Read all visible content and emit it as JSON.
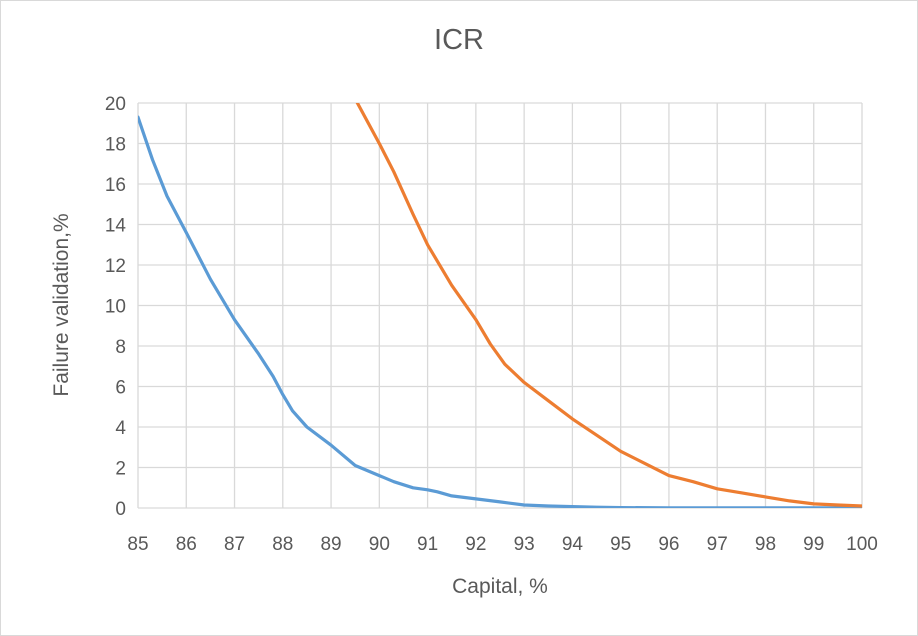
{
  "chart_data": {
    "type": "line",
    "title": "ICR",
    "xlabel": "Capital, %",
    "ylabel": "Failure validation,%",
    "xlim": [
      85,
      100
    ],
    "ylim": [
      0,
      20
    ],
    "xticks": [
      85,
      86,
      87,
      88,
      89,
      90,
      91,
      92,
      93,
      94,
      95,
      96,
      97,
      98,
      99,
      100
    ],
    "yticks": [
      0,
      2,
      4,
      6,
      8,
      10,
      12,
      14,
      16,
      18,
      20
    ],
    "grid": true,
    "legend": "none",
    "series": [
      {
        "color": "#5b9bd5",
        "x": [
          85,
          85.3,
          85.6,
          86,
          86.5,
          87,
          87.5,
          87.8,
          88,
          88.2,
          88.5,
          89,
          89.5,
          90,
          90.3,
          90.7,
          91,
          91.2,
          91.5,
          92,
          92.5,
          93,
          93.5,
          94,
          94.5,
          95,
          96,
          97,
          98,
          99,
          100
        ],
        "y": [
          19.3,
          17.2,
          15.4,
          13.6,
          11.3,
          9.3,
          7.6,
          6.5,
          5.6,
          4.8,
          4.0,
          3.1,
          2.1,
          1.6,
          1.3,
          1.0,
          0.9,
          0.8,
          0.6,
          0.45,
          0.3,
          0.15,
          0.1,
          0.07,
          0.04,
          0.02,
          0.01,
          0.01,
          0.01,
          0.01,
          0.01
        ]
      },
      {
        "color": "#ed7d31",
        "x": [
          89.5,
          90,
          90.3,
          90.7,
          91,
          91.5,
          92,
          92.3,
          92.6,
          93,
          93.5,
          94,
          94.5,
          95,
          95.5,
          96,
          96.5,
          97,
          97.5,
          98,
          98.5,
          99,
          99.5,
          100
        ],
        "y": [
          20.2,
          18.0,
          16.6,
          14.5,
          13.0,
          11.0,
          9.3,
          8.1,
          7.1,
          6.2,
          5.3,
          4.4,
          3.6,
          2.8,
          2.2,
          1.6,
          1.3,
          0.95,
          0.75,
          0.55,
          0.35,
          0.2,
          0.15,
          0.1
        ]
      }
    ]
  }
}
